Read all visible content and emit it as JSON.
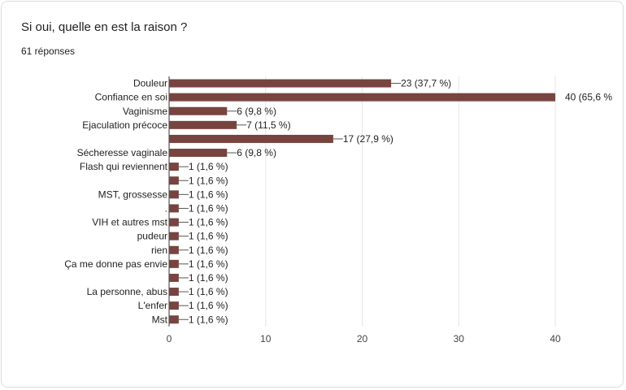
{
  "form": {
    "question": "Si oui, quelle en est la raison ?",
    "responses": "61 réponses"
  },
  "colors": {
    "bar": "#77443f",
    "grid": "#e6e6e6",
    "axis": "#333333",
    "leader": "#555555"
  },
  "chart_data": {
    "type": "bar",
    "orientation": "horizontal",
    "title": "",
    "xlabel": "",
    "ylabel": "",
    "xlim": [
      0,
      40
    ],
    "xticks": [
      0,
      10,
      20,
      30,
      40
    ],
    "grid": true,
    "categories": [
      "Douleur",
      "Confiance en soi",
      "Vaginisme",
      "Ejaculation précoce",
      "",
      "Sécheresse vaginale",
      "Flash qui reviennent",
      "",
      "MST, grossesse",
      ".",
      "VIH et autres mst",
      "pudeur",
      "rien",
      "Ça me donne pas envie",
      "",
      "La personne, abus",
      "L'enfer",
      "Mst"
    ],
    "values": [
      23,
      40,
      6,
      7,
      17,
      6,
      1,
      1,
      1,
      1,
      1,
      1,
      1,
      1,
      1,
      1,
      1,
      1
    ],
    "data_labels": [
      "23 (37,7 %)",
      "40 (65,6 %",
      "6 (9,8 %)",
      "7 (11,5 %)",
      "17 (27,9 %)",
      "6 (9,8 %)",
      "1 (1,6 %)",
      "1 (1,6 %)",
      "1 (1,6 %)",
      "1 (1,6 %)",
      "1 (1,6 %)",
      "1 (1,6 %)",
      "1 (1,6 %)",
      "1 (1,6 %)",
      "1 (1,6 %)",
      "1 (1,6 %)",
      "1 (1,6 %)",
      "1 (1,6 %)"
    ]
  }
}
